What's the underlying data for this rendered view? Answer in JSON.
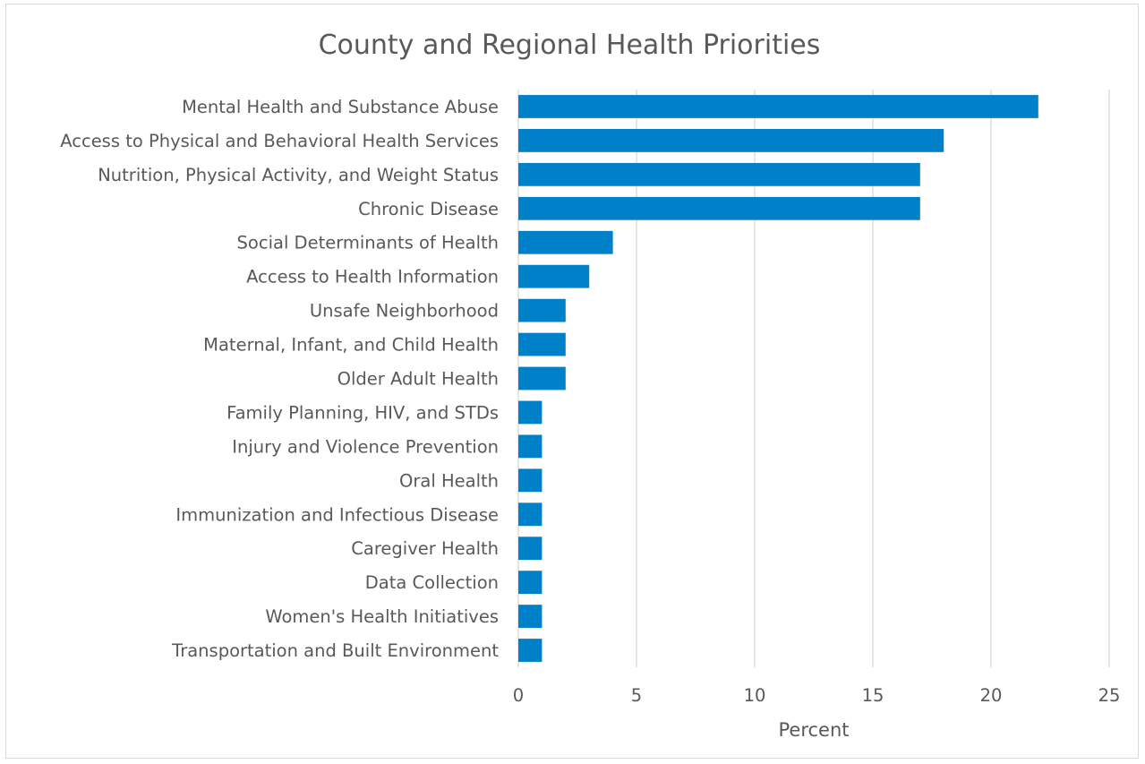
{
  "chart_data": {
    "type": "bar",
    "orientation": "horizontal",
    "title": "County and Regional Health Priorities",
    "xlabel": "Percent",
    "ylabel": "",
    "xlim": [
      0,
      25
    ],
    "xticks": [
      0,
      5,
      10,
      15,
      20,
      25
    ],
    "grid": "vertical",
    "legend": "none",
    "bar_color": "#0080c8",
    "categories": [
      "Mental Health and Substance Abuse",
      "Access to Physical and Behavioral Health Services",
      "Nutrition, Physical Activity, and Weight Status",
      "Chronic Disease",
      "Social Determinants of Health",
      "Access to Health Information",
      "Unsafe Neighborhood",
      "Maternal, Infant, and Child Health",
      "Older Adult Health",
      "Family Planning, HIV, and STDs",
      "Injury and Violence Prevention",
      "Oral Health",
      "Immunization and Infectious Disease",
      "Caregiver Health",
      "Data Collection",
      "Women's Health Initiatives",
      "Transportation and Built Environment"
    ],
    "values": [
      22,
      18,
      17,
      17,
      4,
      3,
      2,
      2,
      2,
      1,
      1,
      1,
      1,
      1,
      1,
      1,
      1
    ]
  }
}
